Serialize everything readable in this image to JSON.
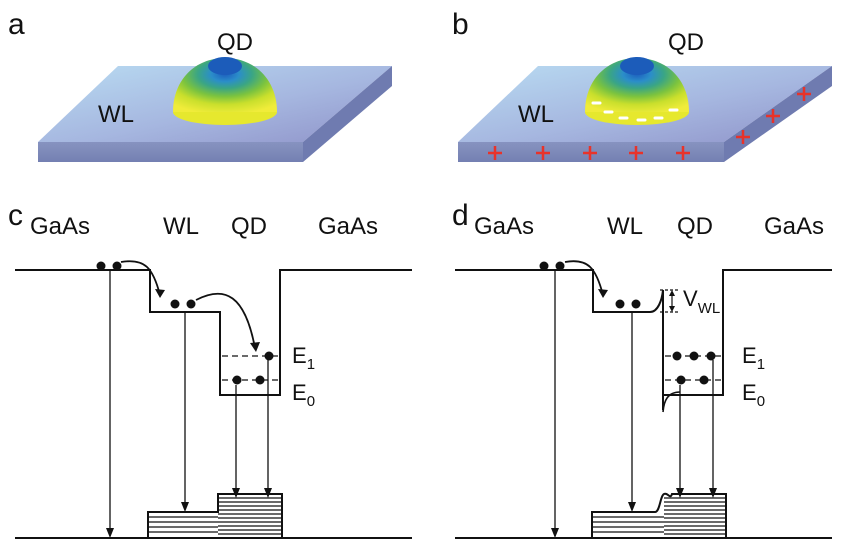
{
  "panels": {
    "a": {
      "label": "a",
      "qd": "QD",
      "wl": "WL"
    },
    "b": {
      "label": "b",
      "qd": "QD",
      "wl": "WL",
      "charge_plus": "+",
      "charge_minus": "-"
    },
    "c": {
      "label": "c",
      "regions": [
        "GaAs",
        "WL",
        "QD",
        "GaAs"
      ],
      "e1": "E",
      "e1_sub": "1",
      "e0": "E",
      "e0_sub": "0"
    },
    "d": {
      "label": "d",
      "regions": [
        "GaAs",
        "WL",
        "QD",
        "GaAs"
      ],
      "e1": "E",
      "e1_sub": "1",
      "e0": "E",
      "e0_sub": "0",
      "v": "V",
      "v_sub": "WL"
    }
  },
  "colors": {
    "wl_slab": "#8f9ccd",
    "slab_edge": "#7a86b8",
    "charge": "#e8332a",
    "qd_center": "#1d6fc4",
    "qd_mid": "#3fa88a",
    "qd_edge": "#e8ea2a"
  }
}
